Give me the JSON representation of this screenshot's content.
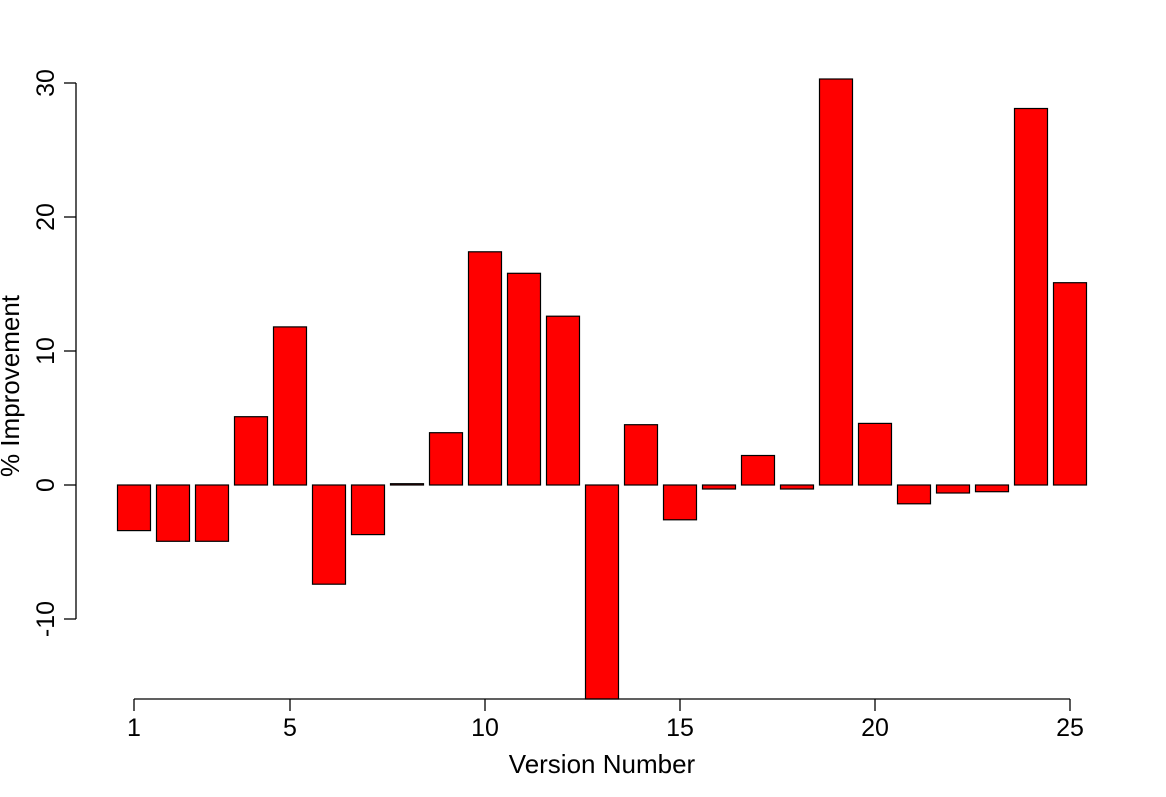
{
  "chart_data": {
    "type": "bar",
    "title": "",
    "xlabel": "Version Number",
    "ylabel": "% Improvement",
    "categories": [
      1,
      2,
      3,
      4,
      5,
      6,
      7,
      8,
      9,
      10,
      11,
      12,
      13,
      14,
      15,
      16,
      17,
      18,
      19,
      20,
      21,
      22,
      23,
      24,
      25
    ],
    "values": [
      -3.4,
      -4.2,
      -4.2,
      5.1,
      11.8,
      -7.4,
      -3.7,
      0.1,
      3.9,
      17.4,
      15.8,
      12.6,
      -16.0,
      4.5,
      -2.6,
      -0.3,
      2.2,
      -0.3,
      30.3,
      4.6,
      -1.4,
      -0.6,
      -0.5,
      28.1,
      15.1
    ],
    "x_tick_labels": [
      "1",
      "5",
      "10",
      "15",
      "20",
      "25"
    ],
    "x_tick_values": [
      1,
      5,
      10,
      15,
      20,
      25
    ],
    "y_tick_labels": [
      "-10",
      "0",
      "10",
      "20",
      "30"
    ],
    "y_tick_values": [
      -10,
      0,
      10,
      20,
      30
    ],
    "ylim": [
      -16,
      30.3
    ],
    "bar_color": "#ff0000",
    "bar_border": "#000000",
    "grid": false,
    "legend": "none"
  }
}
